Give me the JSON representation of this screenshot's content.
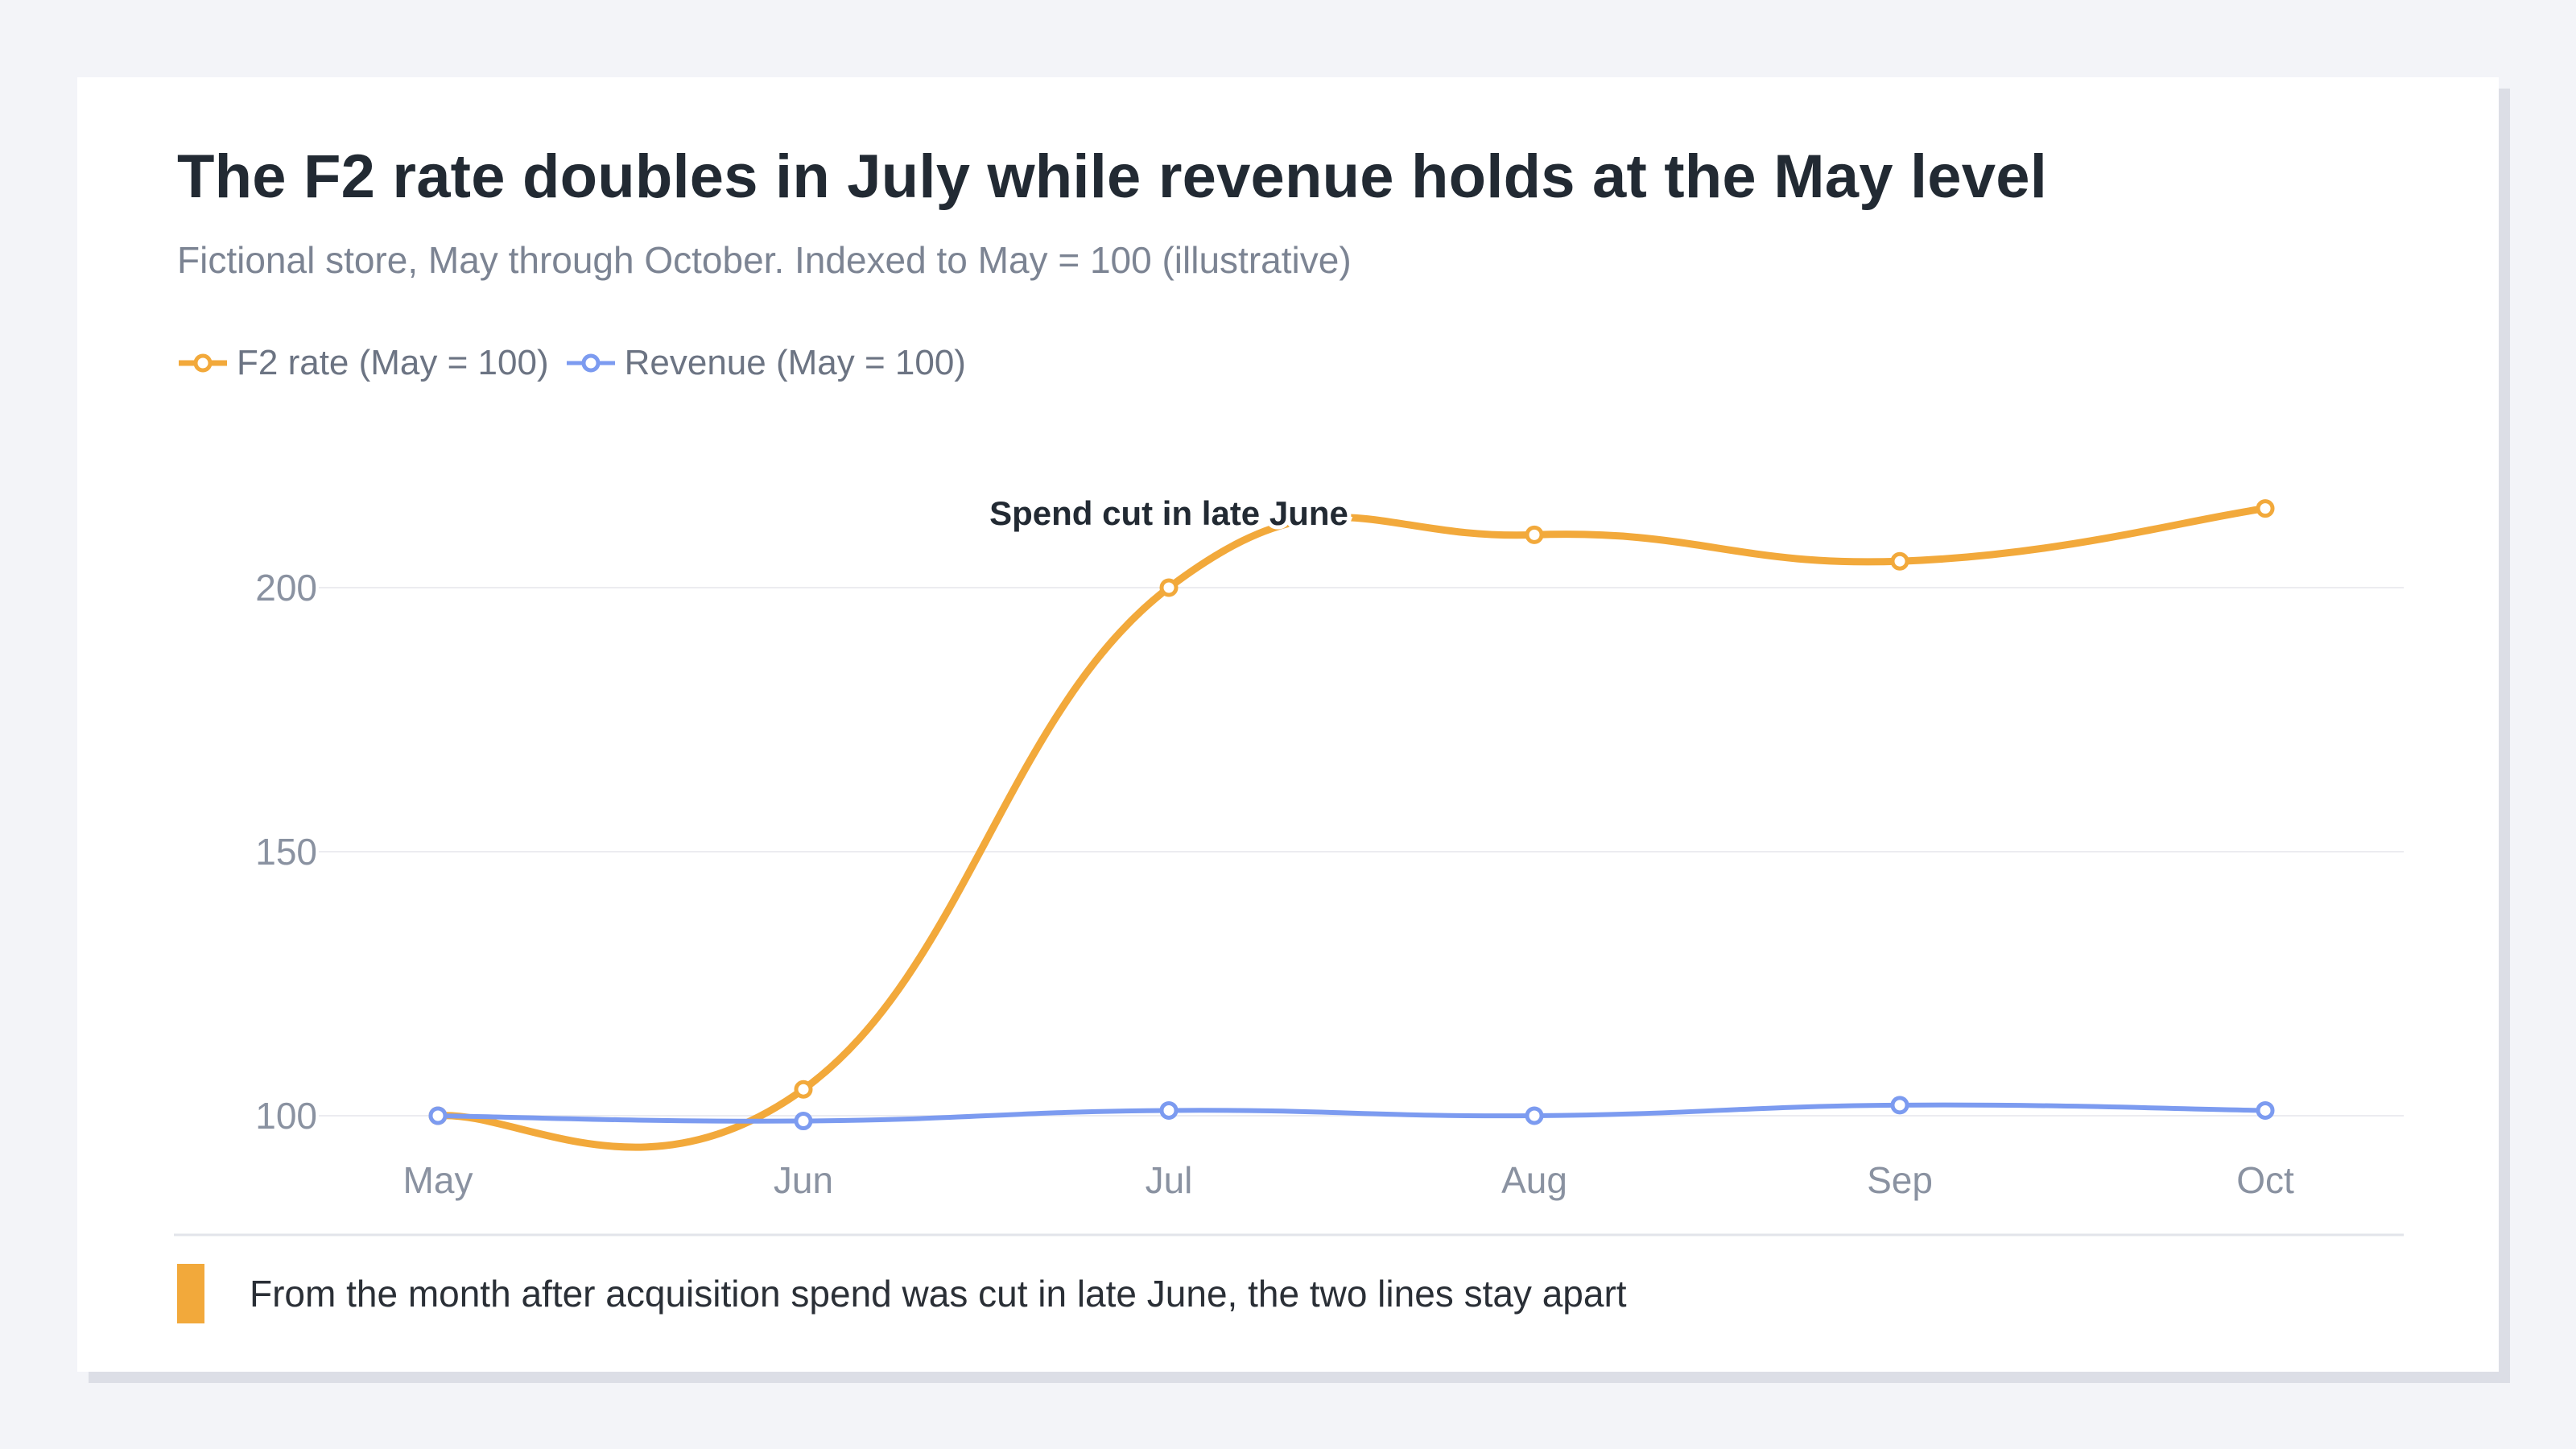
{
  "title": "The F2 rate doubles in July while revenue holds at the May level",
  "subtitle": "Fictional store, May through October. Indexed to May = 100 (illustrative)",
  "footer_note": "From the month after acquisition spend was cut in late June, the two lines stay apart",
  "chart_data": {
    "type": "line",
    "categories": [
      "May",
      "Jun",
      "Jul",
      "Aug",
      "Sep",
      "Oct"
    ],
    "series": [
      {
        "name": "F2 rate (May = 100)",
        "values": [
          100,
          105,
          200,
          210,
          205,
          215
        ],
        "color": "#f2a93b"
      },
      {
        "name": "Revenue (May = 100)",
        "values": [
          100,
          99,
          101,
          100,
          102,
          101
        ],
        "color": "#7c9bf0"
      }
    ],
    "y_ticks": [
      100,
      150,
      200
    ],
    "ylim": [
      92,
      222
    ],
    "grid": true,
    "legend": "top-left",
    "annotation": {
      "text": "Spend cut in late June",
      "x": "Jul",
      "y": 210
    }
  },
  "colors": {
    "accent": "#f2a93b",
    "secondary": "#7c9bf0",
    "grid": "#ececf0",
    "axis_text": "#8a92a1"
  }
}
